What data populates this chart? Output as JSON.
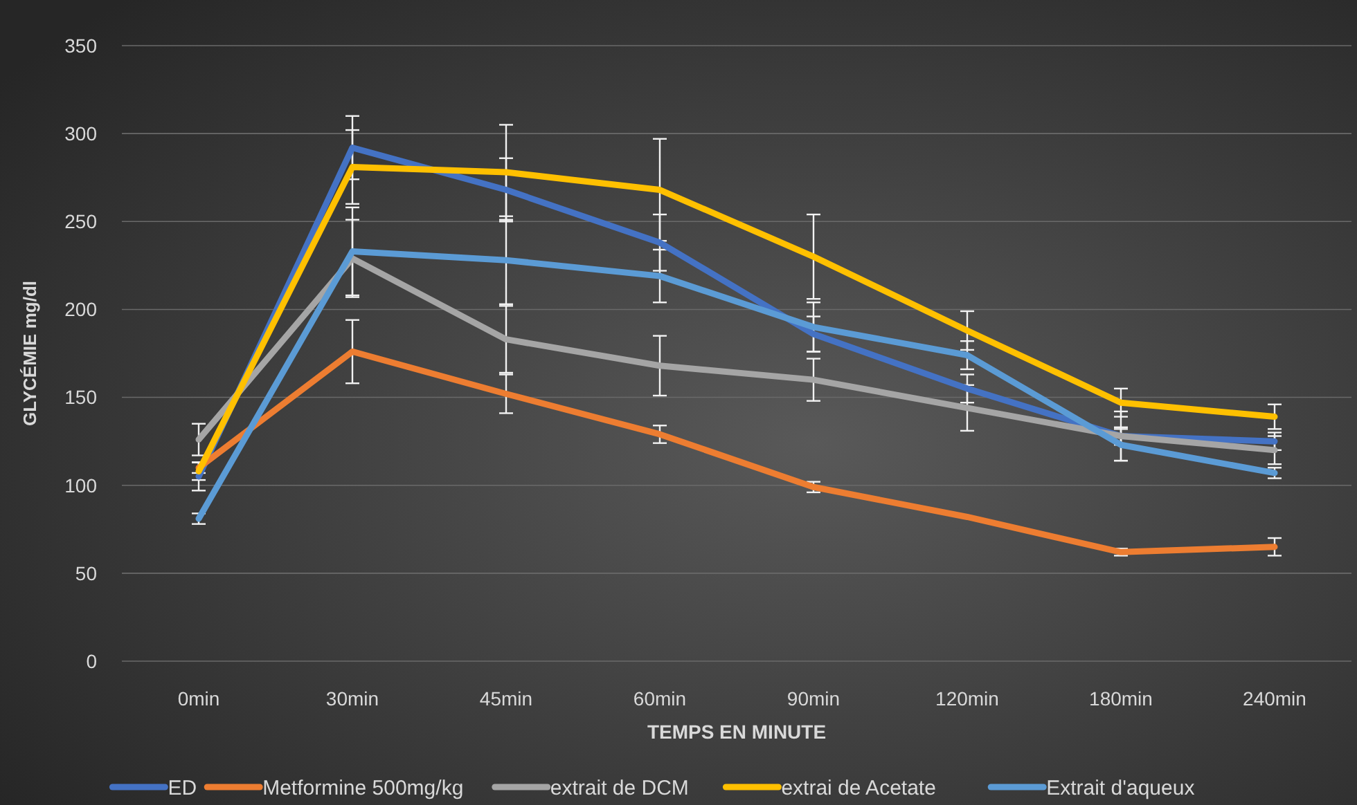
{
  "chart_data": {
    "type": "line",
    "xlabel": "TEMPS EN MINUTE",
    "ylabel": "GLYCÉMIE mg/dl",
    "categories": [
      "0min",
      "30min",
      "45min",
      "60min",
      "90min",
      "120min",
      "180min",
      "240min"
    ],
    "ylim": [
      0,
      350
    ],
    "yticks": [
      0,
      50,
      100,
      150,
      200,
      250,
      300,
      350
    ],
    "grid": "y",
    "legend": "bottom",
    "marker": "none",
    "line_style": "solid",
    "series": [
      {
        "name": "ED",
        "color": "#4472c4",
        "values": [
          105,
          292,
          268,
          238,
          186,
          155,
          128,
          125
        ],
        "errors": [
          8,
          18,
          18,
          16,
          10,
          8,
          5,
          5
        ]
      },
      {
        "name": "Metformine 500mg/kg",
        "color": "#ed7d31",
        "values": [
          110,
          176,
          152,
          129,
          99,
          82,
          62,
          65
        ],
        "errors": [
          3,
          18,
          11,
          5,
          3,
          null,
          2,
          5
        ]
      },
      {
        "name": "extrait de DCM",
        "color": "#a5a5a5",
        "values": [
          126,
          229,
          183,
          168,
          160,
          144,
          128,
          120
        ],
        "errors": [
          9,
          22,
          19,
          17,
          12,
          13,
          14,
          8
        ]
      },
      {
        "name": "extrai de Acetate",
        "color": "#ffc000",
        "values": [
          108,
          281,
          278,
          268,
          230,
          188,
          147,
          139
        ],
        "errors": [
          5,
          21,
          27,
          29,
          24,
          11,
          8,
          7
        ]
      },
      {
        "name": "Extrait d'aqueux",
        "color": "#5b9bd5",
        "values": [
          81,
          233,
          228,
          219,
          190,
          174,
          123,
          107
        ],
        "errors": [
          3,
          25,
          25,
          15,
          14,
          8,
          9,
          3
        ]
      }
    ]
  }
}
